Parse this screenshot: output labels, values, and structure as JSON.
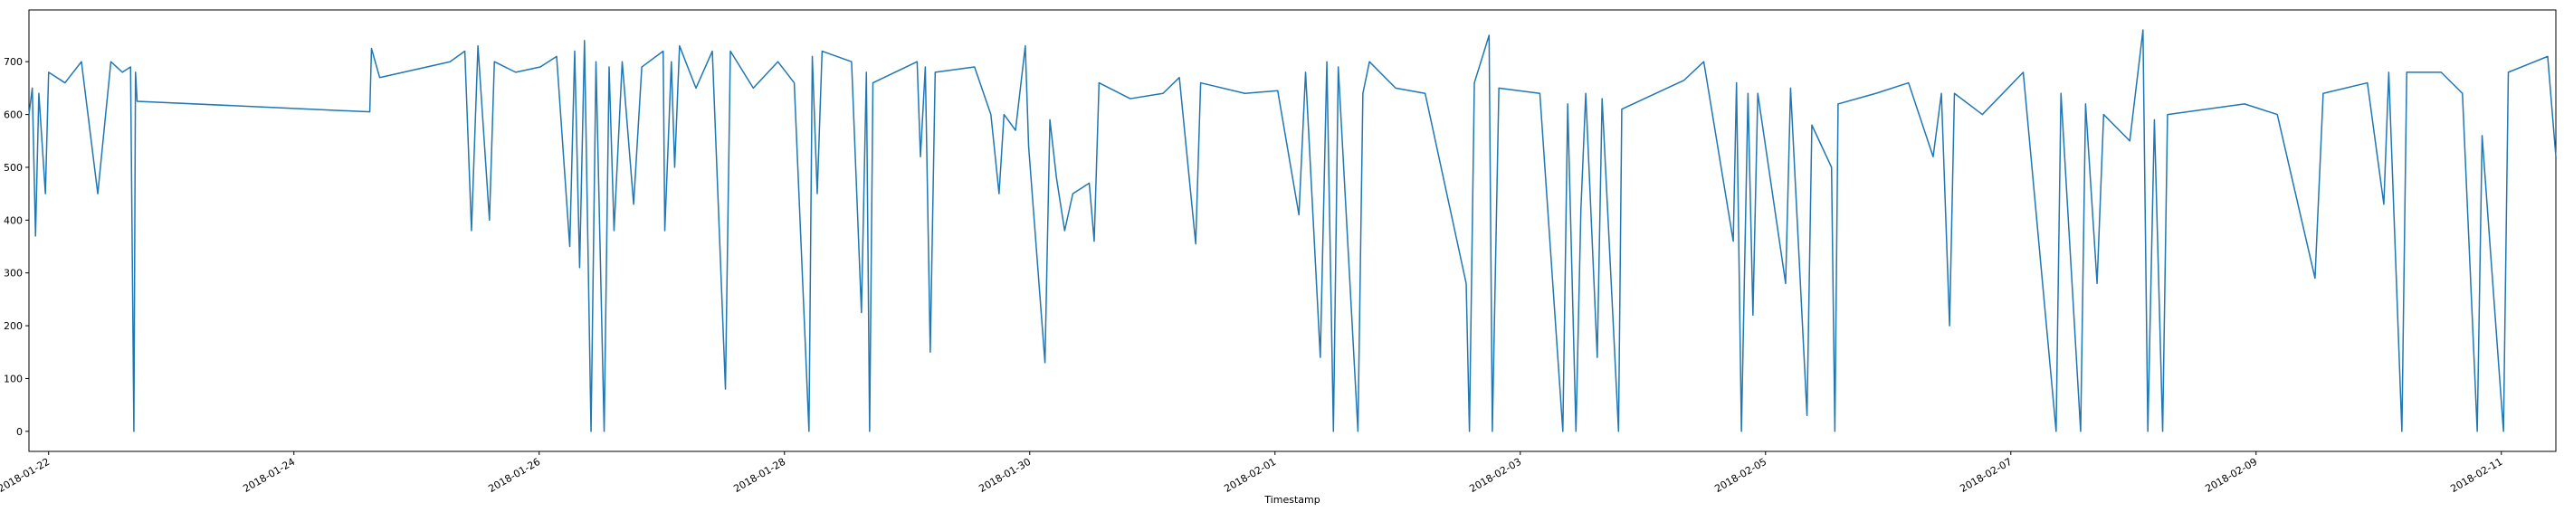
{
  "chart_data": {
    "type": "line",
    "x_label": "Timestamp",
    "color": "#1f77b4",
    "x": [
      "2018-01-21 20:09",
      "2018-01-21 20:48",
      "2018-01-21 21:26",
      "2018-01-21 22:05",
      "2018-01-21 23:22",
      "2018-01-22 00:00",
      "2018-01-22 03:12",
      "2018-01-22 06:25",
      "2018-01-22 09:37",
      "2018-01-22 12:11",
      "2018-01-22 14:26",
      "2018-01-22 16:02",
      "2018-01-22 16:41",
      "2018-01-22 17:00",
      "2018-01-22 17:19",
      "2018-01-24 14:51",
      "2018-01-24 15:11",
      "2018-01-24 16:47",
      "2018-01-25 06:34",
      "2018-01-25 09:27",
      "2018-01-25 10:45",
      "2018-01-25 12:01",
      "2018-01-25 14:16",
      "2018-01-25 15:14",
      "2018-01-25 19:24",
      "2018-01-26 00:13",
      "2018-01-26 03:25",
      "2018-01-26 05:59",
      "2018-01-26 06:57",
      "2018-01-26 07:55",
      "2018-01-26 08:52",
      "2018-01-26 10:09",
      "2018-01-26 11:07",
      "2018-01-26 12:43",
      "2018-01-26 13:41",
      "2018-01-26 14:39",
      "2018-01-26 16:15",
      "2018-01-26 18:29",
      "2018-01-26 20:05",
      "2018-01-27 00:16",
      "2018-01-27 00:35",
      "2018-01-27 01:52",
      "2018-01-27 02:31",
      "2018-01-27 03:28",
      "2018-01-27 06:41",
      "2018-01-27 09:53",
      "2018-01-27 12:27",
      "2018-01-27 13:25",
      "2018-01-27 17:54",
      "2018-01-27 22:43",
      "2018-01-28 01:55",
      "2018-01-28 04:48",
      "2018-01-28 05:27",
      "2018-01-28 06:25",
      "2018-01-28 07:22",
      "2018-01-28 13:08",
      "2018-01-28 15:04",
      "2018-01-28 16:02",
      "2018-01-28 16:40",
      "2018-01-28 17:19",
      "2018-01-29 01:58",
      "2018-01-29 02:37",
      "2018-01-29 03:34",
      "2018-01-29 04:32",
      "2018-01-29 05:30",
      "2018-01-29 13:12",
      "2018-01-29 16:24",
      "2018-01-29 18:00",
      "2018-01-29 18:58",
      "2018-01-29 21:13",
      "2018-01-29 23:08",
      "2018-01-29 23:47",
      "2018-01-30 02:59",
      "2018-01-30 03:57",
      "2018-01-30 05:14",
      "2018-01-30 06:50",
      "2018-01-30 08:26",
      "2018-01-30 11:39",
      "2018-01-30 12:37",
      "2018-01-30 13:34",
      "2018-01-30 19:40",
      "2018-01-31 02:05",
      "2018-01-31 05:17",
      "2018-01-31 08:29",
      "2018-01-31 09:27",
      "2018-01-31 18:07",
      "2018-02-01 00:32",
      "2018-02-01 04:41",
      "2018-02-01 05:59",
      "2018-02-01 08:52",
      "2018-02-01 10:09",
      "2018-02-01 11:26",
      "2018-02-01 12:23",
      "2018-02-01 16:14",
      "2018-02-01 17:12",
      "2018-02-01 18:29",
      "2018-02-01 23:37",
      "2018-02-02 05:23",
      "2018-02-02 13:25",
      "2018-02-02 14:03",
      "2018-02-02 15:01",
      "2018-02-02 17:54",
      "2018-02-02 18:32",
      "2018-02-02 19:49",
      "2018-02-03 03:50",
      "2018-02-03 08:20",
      "2018-02-03 09:17",
      "2018-02-03 10:54",
      "2018-02-03 11:52",
      "2018-02-03 12:49",
      "2018-02-03 15:04",
      "2018-02-03 16:01",
      "2018-02-03 19:14",
      "2018-02-03 19:52",
      "2018-02-04 08:04",
      "2018-02-04 11:55",
      "2018-02-04 17:41",
      "2018-02-04 18:19",
      "2018-02-04 19:17",
      "2018-02-04 20:34",
      "2018-02-04 21:32",
      "2018-02-04 22:29",
      "2018-02-05 03:56",
      "2018-02-05 04:54",
      "2018-02-05 08:07",
      "2018-02-05 09:04",
      "2018-02-05 12:55",
      "2018-02-05 13:34",
      "2018-02-05 14:12",
      "2018-02-05 21:35",
      "2018-02-06 03:59",
      "2018-02-06 08:48",
      "2018-02-06 10:25",
      "2018-02-06 12:01",
      "2018-02-06 12:58",
      "2018-02-06 18:26",
      "2018-02-07 02:26",
      "2018-02-07 08:52",
      "2018-02-07 09:49",
      "2018-02-07 13:40",
      "2018-02-07 14:38",
      "2018-02-07 16:53",
      "2018-02-07 18:10",
      "2018-02-07 23:17",
      "2018-02-08 01:52",
      "2018-02-08 02:49",
      "2018-02-08 04:06",
      "2018-02-08 05:43",
      "2018-02-08 06:40",
      "2018-02-08 21:44",
      "2018-02-09 04:09",
      "2018-02-09 11:32",
      "2018-02-09 13:08",
      "2018-02-09 21:47",
      "2018-02-10 01:00",
      "2018-02-10 01:58",
      "2018-02-10 04:32",
      "2018-02-10 05:29",
      "2018-02-10 12:13",
      "2018-02-10 16:23",
      "2018-02-10 19:17",
      "2018-02-10 20:14",
      "2018-02-11 00:25",
      "2018-02-11 01:22",
      "2018-02-11 09:04",
      "2018-02-11 10:40"
    ],
    "values": [
      600,
      650,
      370,
      640,
      450,
      680,
      660,
      700,
      450,
      700,
      680,
      690,
      0,
      680,
      625,
      605,
      725,
      670,
      700,
      720,
      380,
      730,
      400,
      700,
      680,
      690,
      710,
      350,
      720,
      310,
      740,
      0,
      700,
      0,
      690,
      380,
      700,
      430,
      690,
      720,
      380,
      700,
      500,
      730,
      650,
      720,
      80,
      720,
      650,
      700,
      660,
      0,
      710,
      450,
      720,
      700,
      225,
      680,
      0,
      660,
      700,
      520,
      690,
      150,
      680,
      690,
      600,
      450,
      600,
      570,
      730,
      540,
      130,
      590,
      480,
      380,
      450,
      470,
      360,
      660,
      630,
      640,
      670,
      355,
      660,
      640,
      645,
      410,
      680,
      140,
      700,
      0,
      690,
      0,
      640,
      700,
      650,
      640,
      280,
      0,
      660,
      750,
      0,
      650,
      640,
      0,
      620,
      0,
      420,
      640,
      140,
      630,
      0,
      610,
      665,
      700,
      360,
      660,
      0,
      640,
      220,
      640,
      280,
      650,
      30,
      580,
      500,
      0,
      620,
      640,
      660,
      520,
      640,
      200,
      640,
      600,
      680,
      0,
      640,
      0,
      620,
      280,
      600,
      550,
      760,
      0,
      590,
      0,
      600,
      620,
      600,
      290,
      640,
      660,
      430,
      680,
      0,
      680,
      680,
      640,
      0,
      560,
      0,
      680,
      710,
      520
    ],
    "xlim": [
      "2018-01-21 20:09",
      "2018-02-11 10:40"
    ],
    "xticks": [
      "2018-01-22",
      "2018-01-24",
      "2018-01-26",
      "2018-01-28",
      "2018-01-30",
      "2018-02-01",
      "2018-02-03",
      "2018-02-05",
      "2018-02-07",
      "2018-02-09",
      "2018-02-11"
    ],
    "ylim": [
      -38,
      798
    ],
    "yticks": [
      0,
      100,
      200,
      300,
      400,
      500,
      600,
      700
    ]
  }
}
